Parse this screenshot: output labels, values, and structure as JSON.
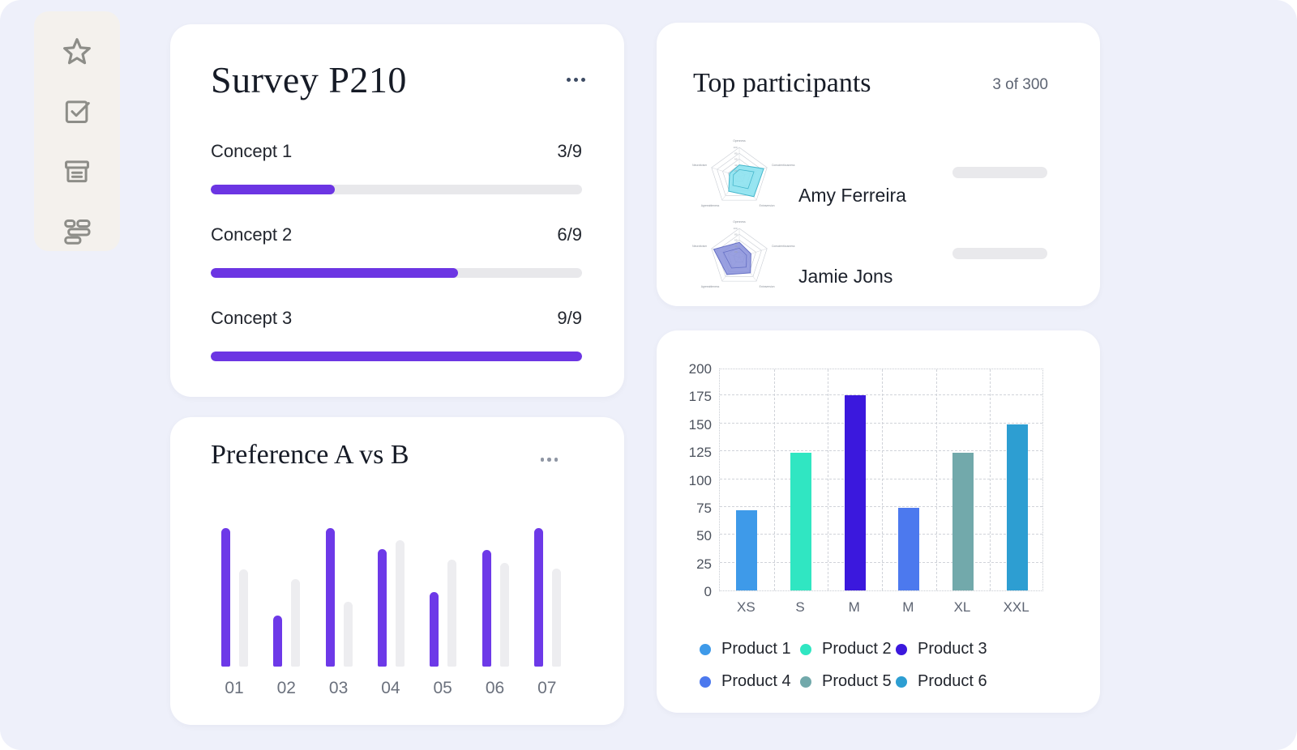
{
  "accent_color": "#6c35e3",
  "background_color": "#eef0fa",
  "sidebar": {
    "icons": [
      "star-icon",
      "checkbox-checked-icon",
      "archive-icon",
      "layout-list-icon"
    ]
  },
  "survey": {
    "title": "Survey P210",
    "menu_icon": "ellipsis-icon",
    "concepts": [
      {
        "label": "Concept 1",
        "score": "3/9",
        "completed": 3,
        "total": 9
      },
      {
        "label": "Concept 2",
        "score": "6/9",
        "completed": 6,
        "total": 9
      },
      {
        "label": "Concept 3",
        "score": "9/9",
        "completed": 9,
        "total": 9
      }
    ]
  },
  "preference": {
    "title": "Preference A vs B",
    "menu_icon": "ellipsis-icon"
  },
  "participants": {
    "title": "Top participants",
    "count": "3 of 300",
    "rows": [
      {
        "name": "Amy Ferreira",
        "radar_id": "radar-amy"
      },
      {
        "name": "Jamie Jons",
        "radar_id": "radar-jamie"
      }
    ]
  },
  "chart_data": [
    {
      "id": "preference-vs",
      "type": "bar",
      "title": "Preference A vs B",
      "categories": [
        "01",
        "02",
        "03",
        "04",
        "05",
        "06",
        "07"
      ],
      "series": [
        {
          "name": "Preference A",
          "color": "#6d39e8",
          "values": [
            100,
            37,
            100,
            85,
            54,
            84,
            100
          ]
        },
        {
          "name": "Preference B",
          "color": "#ededf0",
          "values": [
            70,
            63,
            47,
            91,
            77,
            75,
            71
          ]
        }
      ],
      "ylim": [
        0,
        100
      ],
      "grid": false,
      "legend_position": "none"
    },
    {
      "id": "radar-amy",
      "type": "radar",
      "axes": [
        "Openness",
        "Conscientiousness",
        "Extraversion",
        "Agreeableness",
        "Neuroticism"
      ],
      "ticks": [
        20,
        40,
        60,
        80,
        100
      ],
      "values": [
        40,
        88,
        85,
        62,
        35
      ],
      "inner_outline_scale": 0.6,
      "fill": "rgba(140,226,240,0.9)",
      "stroke": "#44b6cb"
    },
    {
      "id": "radar-jamie",
      "type": "radar",
      "axes": [
        "Openness",
        "Conscientiousness",
        "Extraversion",
        "Agreeableness",
        "Neuroticism"
      ],
      "ticks": [
        20,
        40,
        60,
        80,
        100
      ],
      "values": [
        52,
        42,
        65,
        72,
        92
      ],
      "inner_outline_scale": 0.62,
      "fill": "rgba(135,143,219,0.85)",
      "stroke": "#6670c5"
    },
    {
      "id": "sizes",
      "type": "bar",
      "categories": [
        "XS",
        "S",
        "M",
        "M",
        "XL",
        "XXL"
      ],
      "values": [
        72,
        124,
        175,
        74,
        124,
        149
      ],
      "bar_colors": [
        "#3e9ae9",
        "#30e6c2",
        "#3b18dd",
        "#4c79ee",
        "#72a9ab",
        "#2d9ed2"
      ],
      "ylim": [
        0,
        200
      ],
      "ytick_step": 25,
      "grid": true,
      "legend_position": "bottom",
      "legend": [
        {
          "label": "Product 1",
          "color": "#3e9ae9"
        },
        {
          "label": "Product 2",
          "color": "#30e6c2"
        },
        {
          "label": "Product 3",
          "color": "#3b18dd"
        },
        {
          "label": "Product 4",
          "color": "#4c79ee"
        },
        {
          "label": "Product 5",
          "color": "#72a9ab"
        },
        {
          "label": "Product 6",
          "color": "#2d9ed2"
        }
      ]
    }
  ]
}
